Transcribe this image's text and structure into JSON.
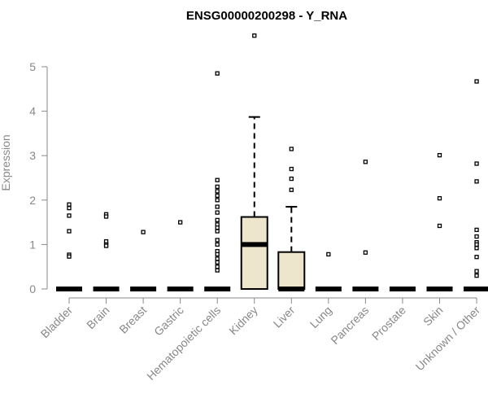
{
  "chart_data": {
    "type": "boxplot",
    "title": "ENSG00000200298 - Y_RNA",
    "xlabel": "",
    "ylabel": "Expression",
    "ylim": [
      0,
      5.7
    ],
    "yticks": [
      0,
      1,
      2,
      3,
      4,
      5
    ],
    "categories": [
      "Bladder",
      "Brain",
      "Breast",
      "Gastric",
      "Hematopoietic cells",
      "Kidney",
      "Liver",
      "Lung",
      "Pancreas",
      "Prostate",
      "Skin",
      "Unknown / Other"
    ],
    "boxes": [
      {
        "category": "Bladder",
        "min": 0,
        "q1": 0,
        "median": 0,
        "q3": 0,
        "max": 0,
        "outliers": [
          1.9,
          1.82,
          1.65,
          1.3,
          0.77,
          0.73
        ]
      },
      {
        "category": "Brain",
        "min": 0,
        "q1": 0,
        "median": 0,
        "q3": 0,
        "max": 0,
        "outliers": [
          1.68,
          1.63,
          1.07,
          1.0,
          0.97
        ]
      },
      {
        "category": "Breast",
        "min": 0,
        "q1": 0,
        "median": 0,
        "q3": 0,
        "max": 0,
        "outliers": [
          1.28
        ]
      },
      {
        "category": "Gastric",
        "min": 0,
        "q1": 0,
        "median": 0,
        "q3": 0,
        "max": 0,
        "outliers": [
          1.5
        ]
      },
      {
        "category": "Hematopoietic cells",
        "min": 0,
        "q1": 0,
        "median": 0,
        "q3": 0,
        "max": 0,
        "outliers": [
          4.85,
          2.45,
          2.3,
          2.2,
          2.1,
          2.0,
          1.85,
          1.72,
          1.55,
          1.45,
          1.38,
          1.3,
          1.1,
          1.0,
          0.85,
          0.78,
          0.68,
          0.6,
          0.5,
          0.42
        ]
      },
      {
        "category": "Kidney",
        "min": 0,
        "q1": 0,
        "median": 1.0,
        "q3": 1.62,
        "max": 3.87,
        "outliers": [
          5.7
        ]
      },
      {
        "category": "Liver",
        "min": 0,
        "q1": 0,
        "median": 0,
        "q3": 0.83,
        "max": 1.85,
        "outliers": [
          3.15,
          2.7,
          2.48,
          2.23
        ]
      },
      {
        "category": "Lung",
        "min": 0,
        "q1": 0,
        "median": 0,
        "q3": 0,
        "max": 0,
        "outliers": [
          0.78
        ]
      },
      {
        "category": "Pancreas",
        "min": 0,
        "q1": 0,
        "median": 0,
        "q3": 0,
        "max": 0,
        "outliers": [
          2.86,
          0.82
        ]
      },
      {
        "category": "Prostate",
        "min": 0,
        "q1": 0,
        "median": 0,
        "q3": 0,
        "max": 0,
        "outliers": []
      },
      {
        "category": "Skin",
        "min": 0,
        "q1": 0,
        "median": 0,
        "q3": 0,
        "max": 0,
        "outliers": [
          3.01,
          2.04,
          1.42
        ]
      },
      {
        "category": "Unknown / Other",
        "min": 0,
        "q1": 0,
        "median": 0,
        "q3": 0,
        "max": 0,
        "outliers": [
          4.67,
          2.82,
          2.42,
          1.33,
          1.18,
          1.05,
          1.0,
          0.92,
          0.72,
          0.4,
          0.3
        ]
      }
    ],
    "grid": false,
    "legend": "none",
    "colors": {
      "box_fill": "#ede5cc",
      "box_stroke": "#000000",
      "axis": "#888888",
      "text": "#888888",
      "title": "#000000"
    }
  }
}
